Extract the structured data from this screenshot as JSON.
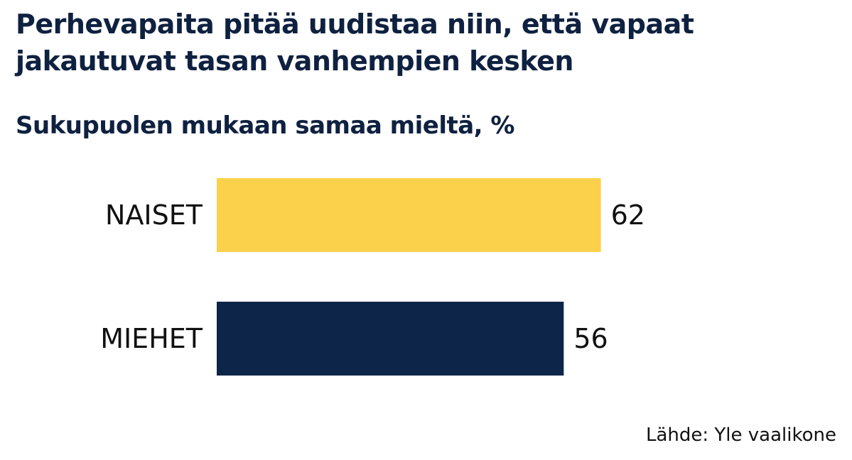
{
  "title": "Perhevapaita pitää uudistaa niin, että vapaat jakautuvat tasan vanhempien kesken",
  "subtitle": "Sukupuolen mukaan samaa mieltä, %",
  "source": "Lähde: Yle vaalikone",
  "chart_data": {
    "type": "bar",
    "orientation": "horizontal",
    "categories": [
      "NAISET",
      "MIEHET"
    ],
    "values": [
      62,
      56
    ],
    "colors": [
      "#fbd14b",
      "#0c2549"
    ],
    "unit": "%",
    "grid": false,
    "legend": "none"
  }
}
